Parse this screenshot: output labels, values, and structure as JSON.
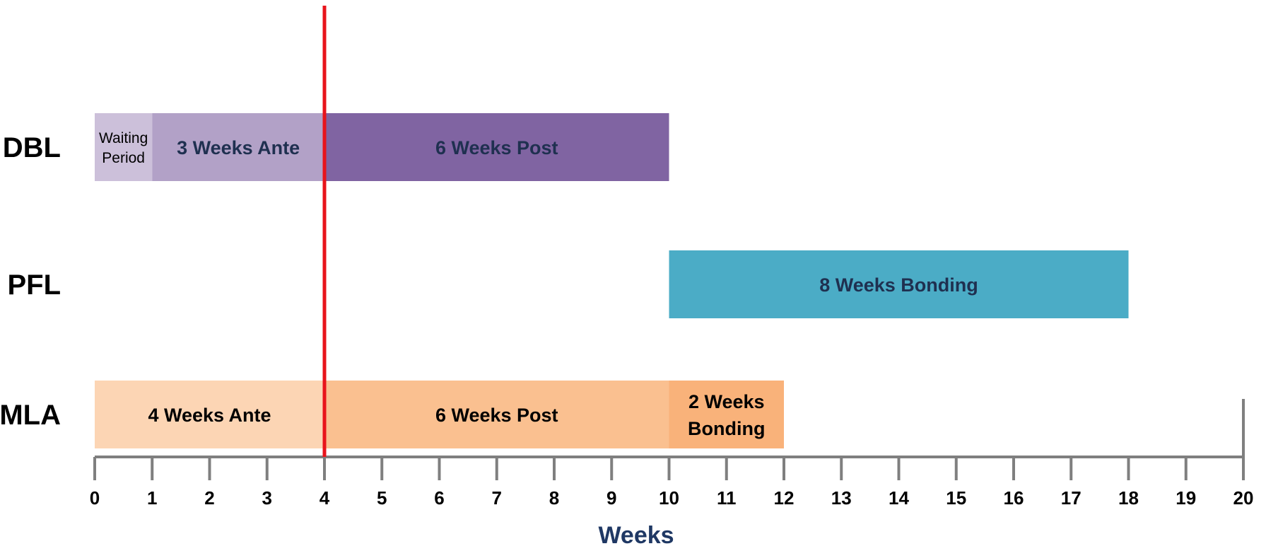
{
  "chart_data": {
    "type": "bar",
    "orientation": "horizontal-stacked-timeline",
    "xlabel": "Weeks",
    "xlim": [
      0,
      20
    ],
    "x_ticks": [
      "0",
      "1",
      "2",
      "3",
      "4",
      "5",
      "6",
      "7",
      "8",
      "9",
      "10",
      "11",
      "12",
      "13",
      "14",
      "15",
      "16",
      "17",
      "18",
      "19",
      "20"
    ],
    "marker_line": {
      "x": 4,
      "color": "#E8141B"
    },
    "rows": [
      {
        "label": "DBL",
        "segments": [
          {
            "start": 0,
            "end": 1,
            "label": "Waiting Period",
            "lines": [
              "Waiting",
              "Period"
            ],
            "color": "#CCC0DA",
            "text_color": "#000000",
            "bold": false
          },
          {
            "start": 1,
            "end": 4,
            "label": "3 Weeks Ante",
            "lines": [
              "3 Weeks Ante"
            ],
            "color": "#B2A1C7",
            "text_color": "#1F3050",
            "bold": true
          },
          {
            "start": 4,
            "end": 10,
            "label": "6 Weeks Post",
            "lines": [
              "6 Weeks Post"
            ],
            "color": "#8064A2",
            "text_color": "#1F3050",
            "bold": true
          }
        ]
      },
      {
        "label": "PFL",
        "segments": [
          {
            "start": 10,
            "end": 18,
            "label": "8 Weeks Bonding",
            "lines": [
              "8 Weeks Bonding"
            ],
            "color": "#4BACC6",
            "text_color": "#1F3050",
            "bold": true
          }
        ]
      },
      {
        "label": "MLA",
        "segments": [
          {
            "start": 0,
            "end": 4,
            "label": "4 Weeks Ante",
            "lines": [
              "4 Weeks Ante"
            ],
            "color": "#FCD5B4",
            "text_color": "#000000",
            "bold": true
          },
          {
            "start": 4,
            "end": 10,
            "label": "6 Weeks Post",
            "lines": [
              "6 Weeks Post"
            ],
            "color": "#FAC090",
            "text_color": "#000000",
            "bold": true
          },
          {
            "start": 10,
            "end": 12,
            "label": "2 Weeks Bonding",
            "lines": [
              "2 Weeks",
              "Bonding"
            ],
            "color": "#F9B27A",
            "text_color": "#000000",
            "bold": true
          }
        ]
      }
    ],
    "colors": {
      "axis": "#7F7F7F",
      "axis_title": "#1F3864"
    }
  }
}
